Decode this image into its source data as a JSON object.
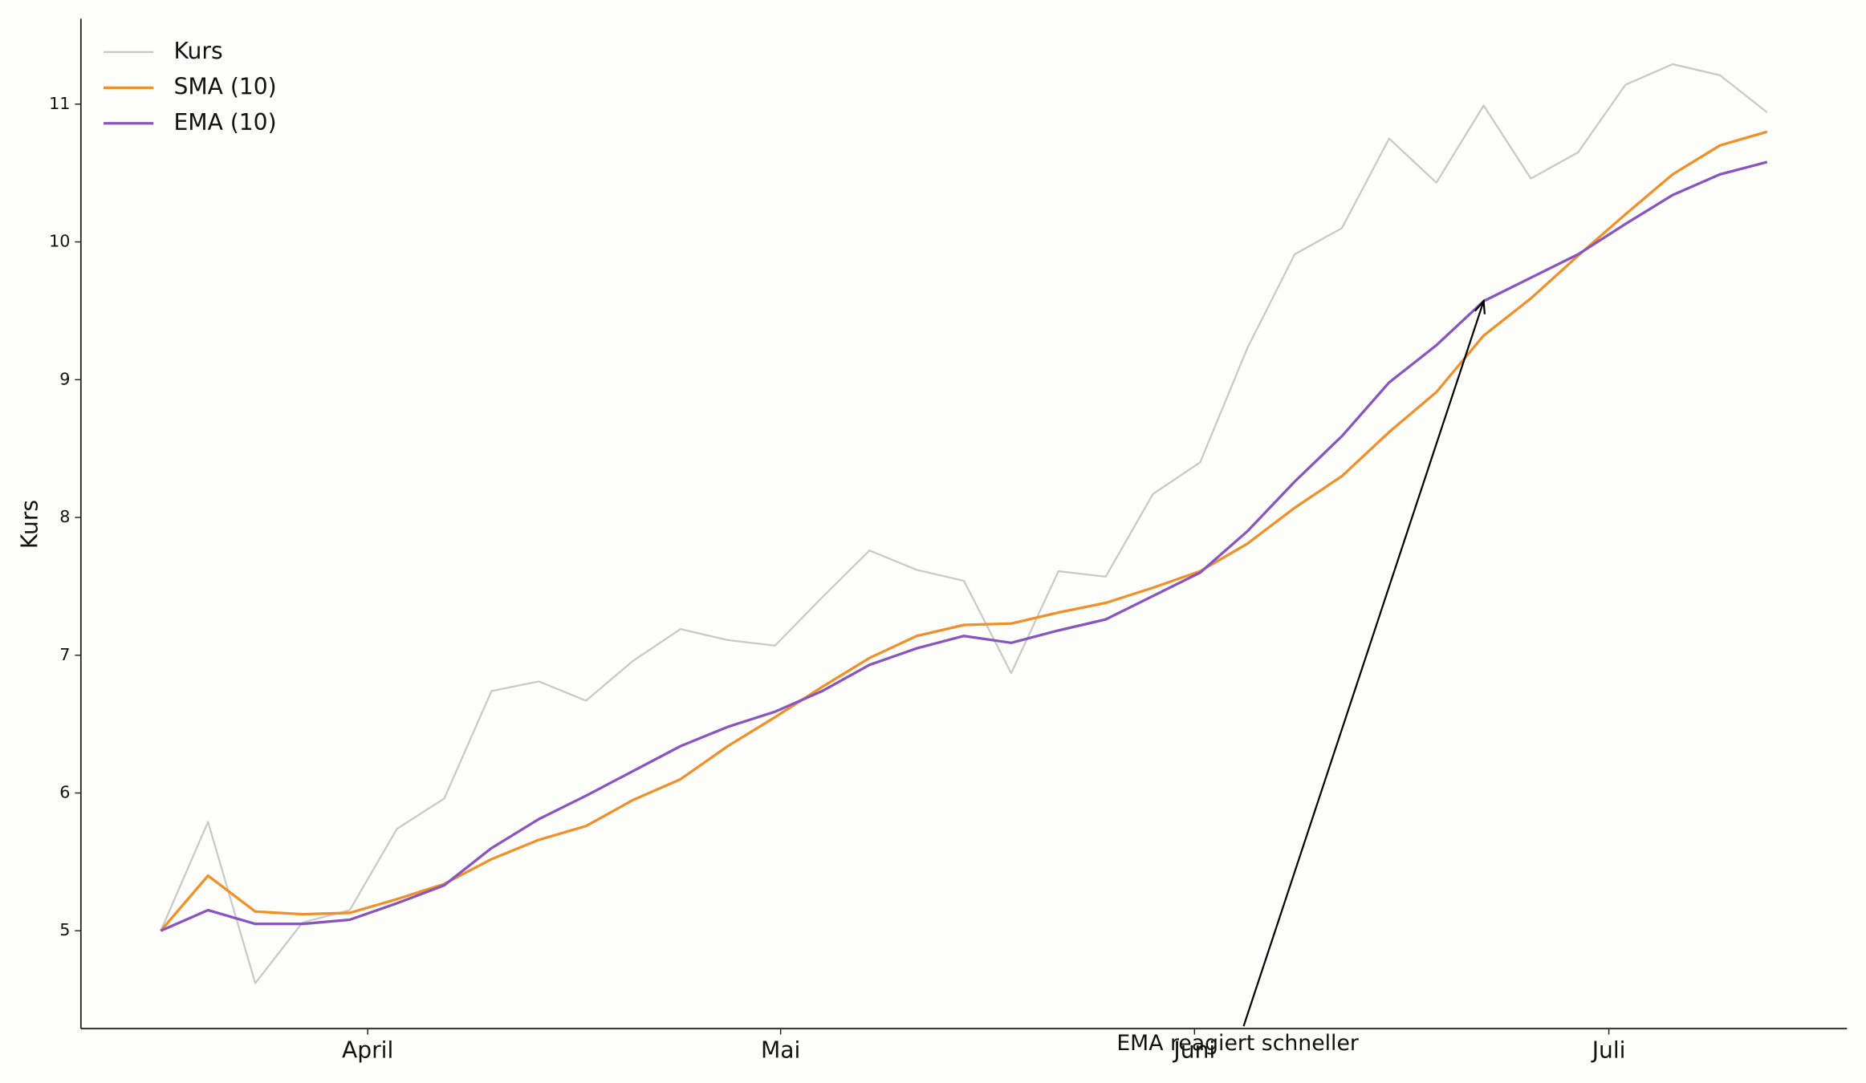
{
  "chart_data": {
    "type": "line",
    "ylabel": "Kurs",
    "x": [
      0,
      1,
      2,
      3,
      4,
      5,
      6,
      7,
      8,
      9,
      10,
      11,
      12,
      13,
      14,
      15,
      16,
      17,
      18,
      19,
      20,
      21,
      22,
      23,
      24,
      25,
      26,
      27,
      28,
      29,
      30,
      31,
      32,
      33,
      34
    ],
    "xlim": [
      -1.69,
      35.69
    ],
    "xticks": [
      {
        "value": 4.38,
        "label": "April"
      },
      {
        "value": 13.12,
        "label": "Mai"
      },
      {
        "value": 21.88,
        "label": "Juni"
      },
      {
        "value": 30.65,
        "label": "Juli"
      }
    ],
    "ylim": [
      4.29,
      11.62
    ],
    "yticks": [
      5,
      6,
      7,
      8,
      9,
      10,
      11
    ],
    "legend": "upper left",
    "series": [
      {
        "name": "Kurs",
        "color": "#c8c8c8",
        "width": 1.5,
        "values": [
          5.0,
          5.79,
          4.62,
          5.06,
          5.15,
          5.74,
          5.96,
          6.74,
          6.81,
          6.67,
          6.96,
          7.19,
          7.11,
          7.07,
          7.42,
          7.76,
          7.62,
          7.54,
          6.87,
          7.61,
          7.57,
          8.17,
          8.4,
          9.23,
          9.91,
          10.1,
          10.75,
          10.43,
          10.99,
          10.46,
          10.65,
          11.14,
          11.29,
          11.21,
          10.94
        ]
      },
      {
        "name": "SMA (10)",
        "color": "#f0902a",
        "width": 2.2,
        "values": [
          5.0,
          5.4,
          5.14,
          5.12,
          5.13,
          5.23,
          5.34,
          5.52,
          5.66,
          5.76,
          5.95,
          6.1,
          6.34,
          6.55,
          6.77,
          6.98,
          7.14,
          7.22,
          7.23,
          7.31,
          7.38,
          7.49,
          7.61,
          7.81,
          8.07,
          8.3,
          8.62,
          8.91,
          9.32,
          9.59,
          9.9,
          10.2,
          10.49,
          10.7,
          10.8
        ]
      },
      {
        "name": "EMA (10)",
        "color": "#8855c0",
        "width": 2.2,
        "values": [
          5.0,
          5.15,
          5.05,
          5.05,
          5.08,
          5.2,
          5.33,
          5.6,
          5.81,
          5.98,
          6.16,
          6.34,
          6.48,
          6.59,
          6.74,
          6.93,
          7.05,
          7.14,
          7.09,
          7.18,
          7.26,
          7.43,
          7.6,
          7.9,
          8.26,
          8.59,
          8.98,
          9.25,
          9.57,
          9.74,
          9.91,
          10.13,
          10.34,
          10.49,
          10.58
        ]
      }
    ],
    "annotation": {
      "text": "EMA reagiert schneller",
      "x": 28,
      "y": 9.57
    }
  }
}
